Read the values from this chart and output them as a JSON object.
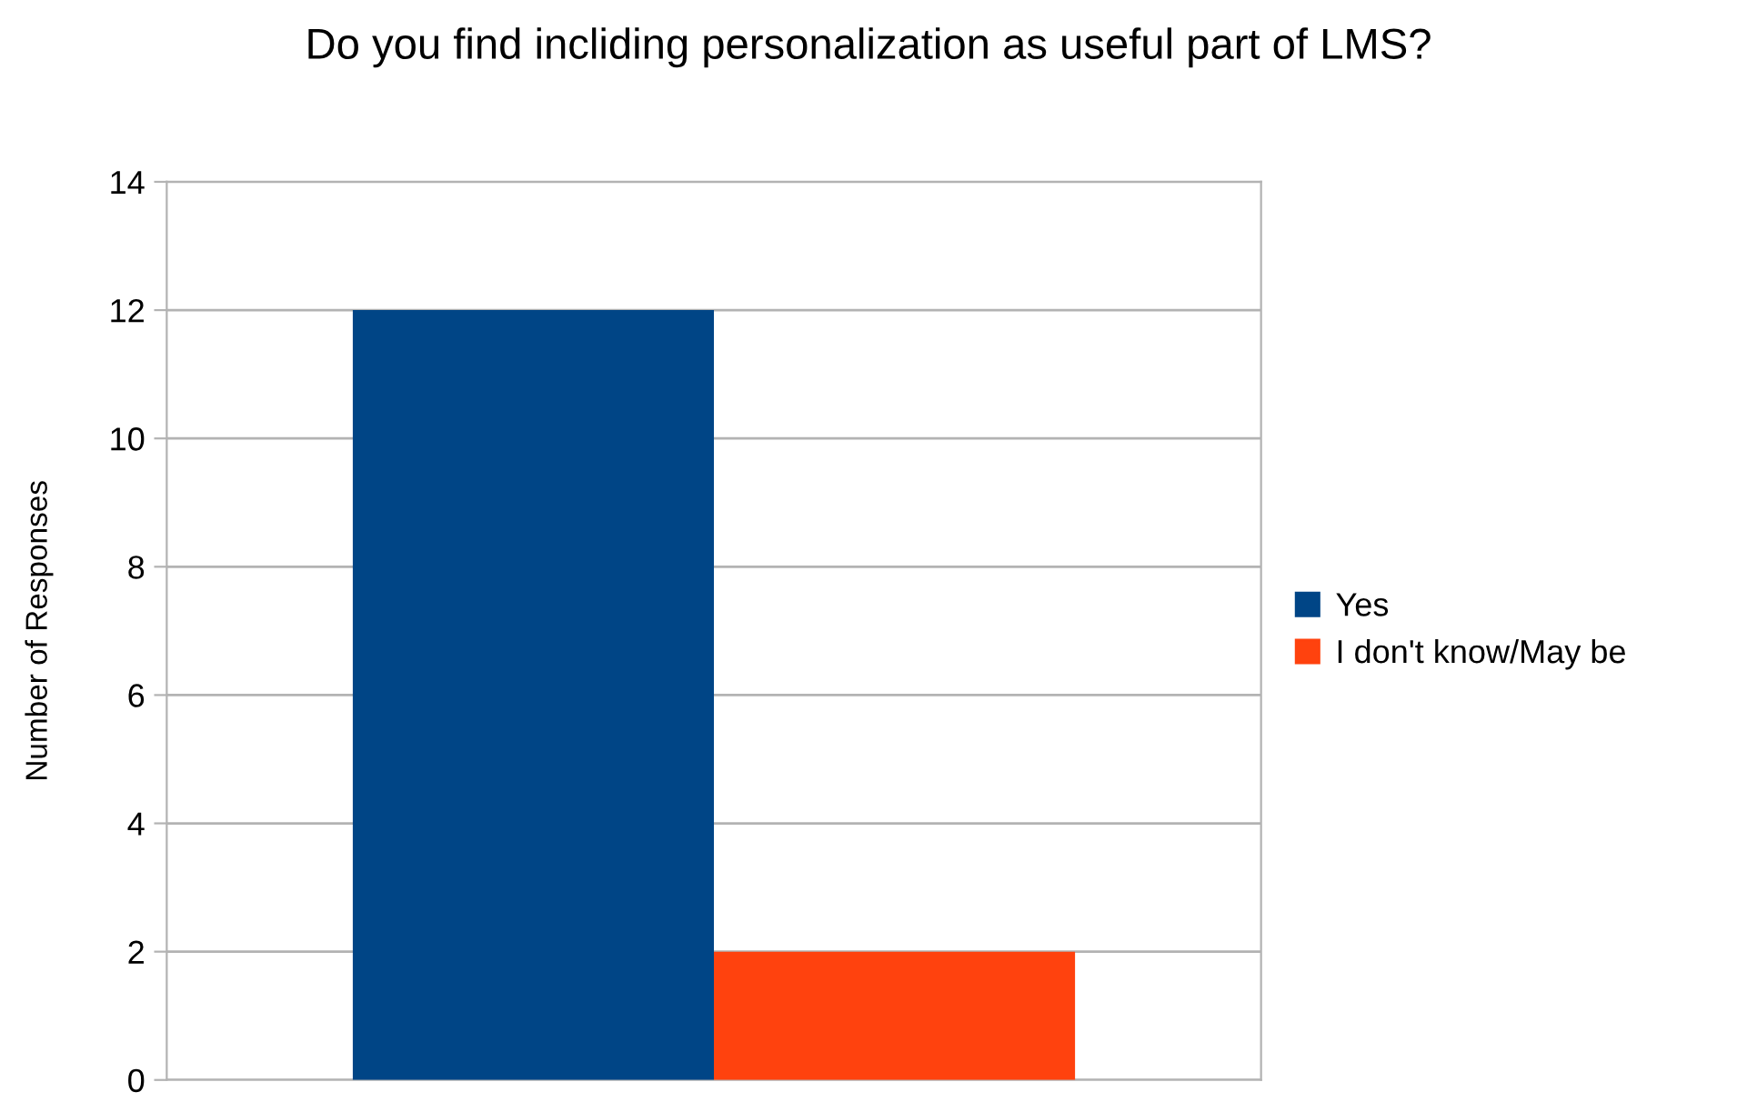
{
  "chart_data": {
    "type": "bar",
    "title": "Do you find incliding personalization as useful part of LMS?",
    "ylabel": "Number of Responses",
    "categories": [
      null
    ],
    "series": [
      {
        "name": "Yes",
        "color": "#004586",
        "values": [
          12
        ]
      },
      {
        "name": "I don't know/May be",
        "color": "#ff420e",
        "values": [
          2
        ]
      }
    ],
    "ylim": [
      0,
      14
    ],
    "yticks": [
      0,
      2,
      4,
      6,
      8,
      10,
      12,
      14
    ],
    "grid": "y",
    "legend": "right"
  }
}
